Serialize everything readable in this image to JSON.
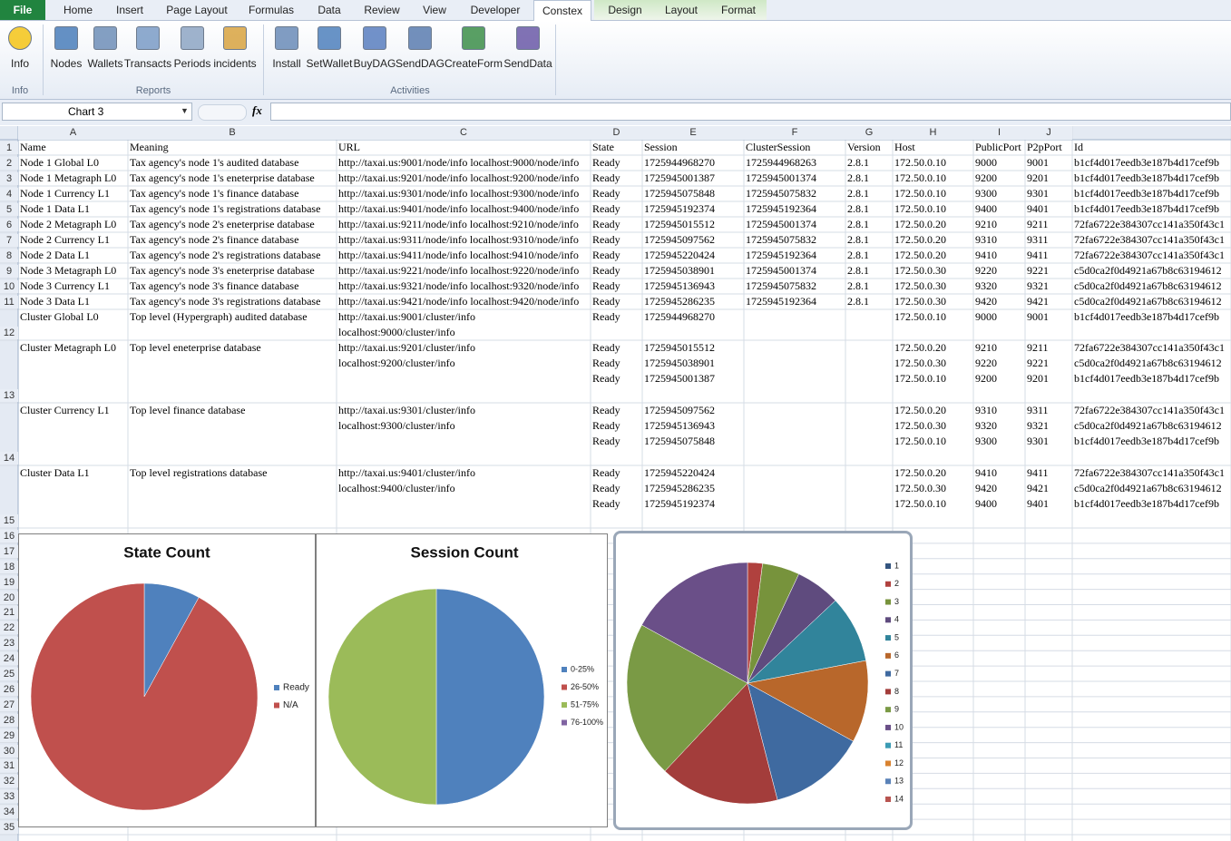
{
  "ribbon": {
    "tabs": [
      "File",
      "Home",
      "Insert",
      "Page Layout",
      "Formulas",
      "Data",
      "Review",
      "View",
      "Developer",
      "Constex",
      "Design",
      "Layout",
      "Format"
    ],
    "groups": [
      {
        "label": "Info",
        "buttons": [
          "Info"
        ]
      },
      {
        "label": "Reports",
        "buttons": [
          "Nodes",
          "Wallets",
          "Transacts",
          "Periods",
          "incidents"
        ]
      },
      {
        "label": "Activities",
        "buttons": [
          "Install",
          "SetWallet",
          "BuyDAG",
          "SendDAG",
          "CreateForm",
          "SendData"
        ]
      }
    ]
  },
  "formula_bar": {
    "name_box": "Chart 3",
    "function_icon": "fx"
  },
  "sheet": {
    "column_headers": [
      "A",
      "B",
      "C",
      "D",
      "E",
      "F",
      "G",
      "H",
      "I",
      "J"
    ],
    "row_numbers": [
      1,
      2,
      3,
      4,
      5,
      6,
      7,
      8,
      9,
      10,
      11,
      12,
      13,
      14,
      15,
      16,
      17,
      18,
      19,
      20,
      21,
      22,
      23,
      24,
      25,
      26,
      27,
      28,
      29,
      30,
      31,
      32,
      33,
      34,
      35
    ],
    "rows": [
      [
        "Name",
        "Meaning",
        "URL",
        "State",
        "Session",
        "ClusterSession",
        "Version",
        "Host",
        "PublicPort",
        "P2pPort",
        "Id"
      ],
      [
        "Node 1 Global L0",
        "Tax agency's node 1's audited database",
        "http://taxai.us:9001/node/info localhost:9000/node/info",
        "Ready",
        "1725944968270",
        "1725944968263",
        "2.8.1",
        "172.50.0.10",
        "9000",
        "9001",
        "b1cf4d017eedb3e187b4d17cef9b"
      ],
      [
        "Node 1 Metagraph L0",
        "Tax agency's node 1's eneterprise database",
        "http://taxai.us:9201/node/info localhost:9200/node/info",
        "Ready",
        "1725945001387",
        "1725945001374",
        "2.8.1",
        "172.50.0.10",
        "9200",
        "9201",
        "b1cf4d017eedb3e187b4d17cef9b"
      ],
      [
        "Node 1 Currency L1",
        "Tax agency's node 1's finance database",
        "http://taxai.us:9301/node/info localhost:9300/node/info",
        "Ready",
        "1725945075848",
        "1725945075832",
        "2.8.1",
        "172.50.0.10",
        "9300",
        "9301",
        "b1cf4d017eedb3e187b4d17cef9b"
      ],
      [
        "Node 1 Data L1",
        "Tax agency's node 1's registrations database",
        "http://taxai.us:9401/node/info localhost:9400/node/info",
        "Ready",
        "1725945192374",
        "1725945192364",
        "2.8.1",
        "172.50.0.10",
        "9400",
        "9401",
        "b1cf4d017eedb3e187b4d17cef9b"
      ],
      [
        "Node 2 Metagraph L0",
        "Tax agency's node 2's eneterprise database",
        "http://taxai.us:9211/node/info localhost:9210/node/info",
        "Ready",
        "1725945015512",
        "1725945001374",
        "2.8.1",
        "172.50.0.20",
        "9210",
        "9211",
        "72fa6722e384307cc141a350f43c1"
      ],
      [
        "Node 2 Currency L1",
        "Tax agency's node 2's finance database",
        "http://taxai.us:9311/node/info localhost:9310/node/info",
        "Ready",
        "1725945097562",
        "1725945075832",
        "2.8.1",
        "172.50.0.20",
        "9310",
        "9311",
        "72fa6722e384307cc141a350f43c1"
      ],
      [
        "Node 2 Data L1",
        "Tax agency's node 2's registrations database",
        "http://taxai.us:9411/node/info localhost:9410/node/info",
        "Ready",
        "1725945220424",
        "1725945192364",
        "2.8.1",
        "172.50.0.20",
        "9410",
        "9411",
        "72fa6722e384307cc141a350f43c1"
      ],
      [
        "Node 3 Metagraph L0",
        "Tax agency's node 3's eneterprise database",
        "http://taxai.us:9221/node/info localhost:9220/node/info",
        "Ready",
        "1725945038901",
        "1725945001374",
        "2.8.1",
        "172.50.0.30",
        "9220",
        "9221",
        "c5d0ca2f0d4921a67b8c63194612"
      ],
      [
        "Node 3 Currency L1",
        "Tax agency's node 3's finance database",
        "http://taxai.us:9321/node/info localhost:9320/node/info",
        "Ready",
        "1725945136943",
        "1725945075832",
        "2.8.1",
        "172.50.0.30",
        "9320",
        "9321",
        "c5d0ca2f0d4921a67b8c63194612"
      ],
      [
        "Node 3 Data L1",
        "Tax agency's node 3's registrations database",
        "http://taxai.us:9421/node/info localhost:9420/node/info",
        "Ready",
        "1725945286235",
        "1725945192364",
        "2.8.1",
        "172.50.0.30",
        "9420",
        "9421",
        "c5d0ca2f0d4921a67b8c63194612"
      ],
      [
        "Cluster Global L0",
        "Top level (Hypergraph) audited database",
        "http://taxai.us:9001/cluster/info\nlocalhost:9000/cluster/info",
        "Ready",
        "1725944968270",
        null,
        null,
        "172.50.0.10",
        "9000",
        "9001",
        "b1cf4d017eedb3e187b4d17cef9b"
      ],
      [
        "Cluster Metagraph L0",
        "Top level eneterprise database",
        "http://taxai.us:9201/cluster/info\nlocalhost:9200/cluster/info",
        "Ready\nReady\nReady",
        "1725945015512\n1725945038901\n1725945001387",
        null,
        null,
        "172.50.0.20\n172.50.0.30\n172.50.0.10",
        "9210\n9220\n9200",
        "9211\n9221\n9201",
        "72fa6722e384307cc141a350f43c1\nc5d0ca2f0d4921a67b8c63194612\nb1cf4d017eedb3e187b4d17cef9b"
      ],
      [
        "Cluster Currency L1",
        "Top level finance database",
        "http://taxai.us:9301/cluster/info\nlocalhost:9300/cluster/info",
        "Ready\nReady\nReady",
        "1725945097562\n1725945136943\n1725945075848",
        null,
        null,
        "172.50.0.20\n172.50.0.30\n172.50.0.10",
        "9310\n9320\n9300",
        "9311\n9321\n9301",
        "72fa6722e384307cc141a350f43c1\nc5d0ca2f0d4921a67b8c63194612\nb1cf4d017eedb3e187b4d17cef9b"
      ],
      [
        "Cluster Data L1",
        "Top level registrations database",
        "http://taxai.us:9401/cluster/info\nlocalhost:9400/cluster/info",
        "Ready\nReady\nReady",
        "1725945220424\n1725945286235\n1725945192374",
        null,
        null,
        "172.50.0.20\n172.50.0.30\n172.50.0.10",
        "9410\n9420\n9400",
        "9411\n9421\n9401",
        "72fa6722e384307cc141a350f43c1\nc5d0ca2f0d4921a67b8c63194612\nb1cf4d017eedb3e187b4d17cef9b"
      ]
    ]
  },
  "chart_data": [
    {
      "type": "pie",
      "title": "State Count",
      "categories": [
        "Ready",
        "N/A"
      ],
      "values": [
        8,
        92
      ],
      "colors": [
        "#4f81bd",
        "#c0504d"
      ],
      "legend": "right"
    },
    {
      "type": "pie",
      "title": "Session Count",
      "categories": [
        "0-25%",
        "26-50%",
        "51-75%",
        "76-100%"
      ],
      "values": [
        50,
        0,
        50,
        0
      ],
      "colors": [
        "#4f81bd",
        "#c0504d",
        "#9bbb59",
        "#8064a2"
      ],
      "legend": "right"
    },
    {
      "type": "pie",
      "categories": [
        "1",
        "2",
        "3",
        "4",
        "5",
        "6",
        "7",
        "8",
        "9",
        "10",
        "11",
        "12",
        "13",
        "14"
      ],
      "values": [
        0,
        2,
        5,
        6,
        9,
        11,
        13,
        16,
        21,
        17,
        0,
        0,
        0,
        0
      ],
      "colors": [
        "#34557f",
        "#b0413e",
        "#77933c",
        "#5f4b7e",
        "#31849b",
        "#b8672b",
        "#3f6aa0",
        "#a33d3b",
        "#7a9a45",
        "#6a4f88",
        "#3b9bb4",
        "#d9822f",
        "#5a82b8",
        "#b85450"
      ],
      "legend": "right"
    }
  ]
}
